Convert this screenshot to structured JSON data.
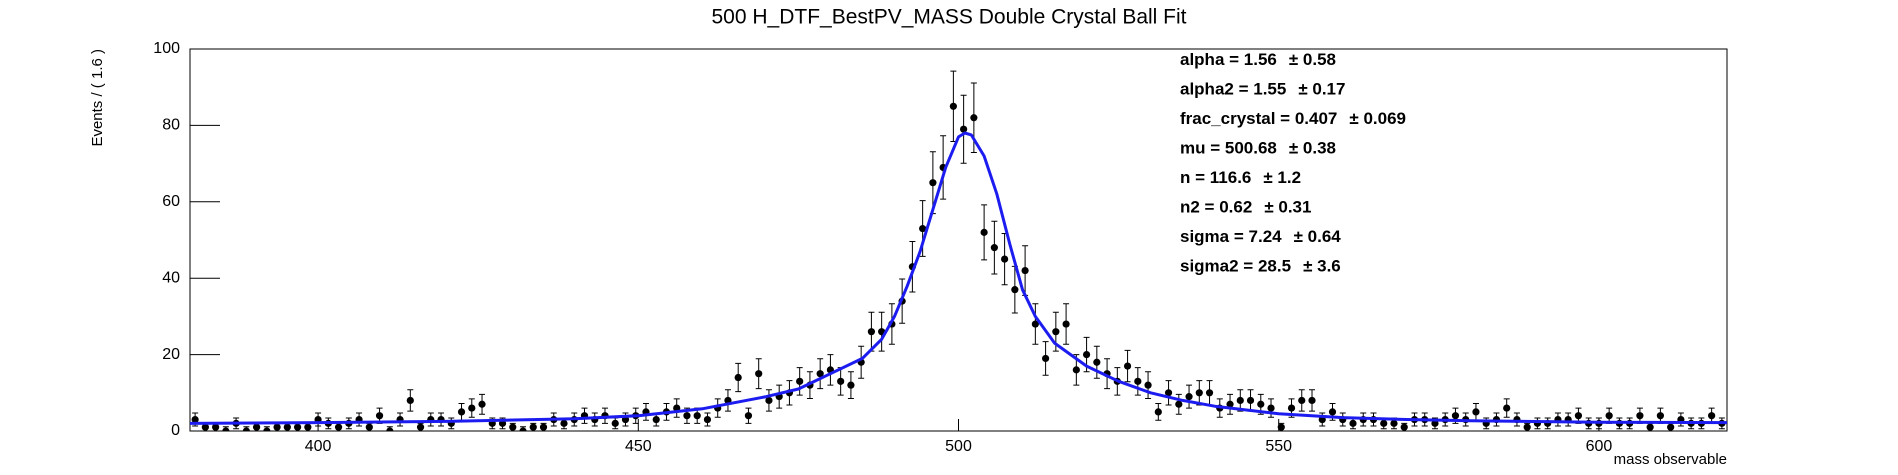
{
  "chart_data": {
    "type": "errorbar",
    "title": "500 H_DTF_BestPV_MASS Double Crystal Ball Fit",
    "y_label": "Events / ( 1.6 )",
    "x_label": "mass observable",
    "xlim": [
      380,
      620
    ],
    "ylim": [
      0,
      100
    ],
    "xticks": [
      400,
      450,
      500,
      550,
      600
    ],
    "yticks": [
      0,
      20,
      40,
      60,
      80,
      100
    ],
    "x": [
      380.8,
      382.4,
      384,
      385.6,
      387.2,
      388.8,
      390.4,
      392,
      393.6,
      395.2,
      396.8,
      398.4,
      400,
      401.6,
      403.2,
      404.8,
      406.4,
      408,
      409.6,
      411.2,
      412.8,
      414.4,
      416,
      417.6,
      419.2,
      420.8,
      422.4,
      424,
      425.6,
      427.2,
      428.8,
      430.4,
      432,
      433.6,
      435.2,
      436.8,
      438.4,
      440,
      441.6,
      443.2,
      444.8,
      446.4,
      448,
      449.6,
      451.2,
      452.8,
      454.4,
      456,
      457.6,
      459.2,
      460.8,
      462.4,
      464,
      465.6,
      467.2,
      468.8,
      470.4,
      472,
      473.6,
      475.2,
      476.8,
      478.4,
      480,
      481.6,
      483.2,
      484.8,
      486.4,
      488,
      489.6,
      491.2,
      492.8,
      494.4,
      496,
      497.6,
      499.2,
      500.8,
      502.4,
      504,
      505.6,
      507.2,
      508.8,
      510.4,
      512,
      513.6,
      515.2,
      516.8,
      518.4,
      520,
      521.6,
      523.2,
      524.8,
      526.4,
      528,
      529.6,
      531.2,
      532.8,
      534.4,
      536,
      537.6,
      539.2,
      540.8,
      542.4,
      544,
      545.6,
      547.2,
      548.8,
      550.4,
      552,
      553.6,
      555.2,
      556.8,
      558.4,
      560,
      561.6,
      563.2,
      564.8,
      566.4,
      568,
      569.6,
      571.2,
      572.8,
      574.4,
      576,
      577.6,
      579.2,
      580.8,
      582.4,
      584,
      585.6,
      587.2,
      588.8,
      590.4,
      592,
      593.6,
      595.2,
      596.8,
      598.4,
      600,
      601.6,
      603.2,
      604.8,
      606.4,
      608,
      609.6,
      611.2,
      612.8,
      614.4,
      616,
      617.6,
      619.2
    ],
    "values": [
      3,
      1,
      1,
      0,
      2,
      0,
      1,
      0,
      1,
      1,
      1,
      1,
      3,
      2,
      1,
      2,
      3,
      1,
      4,
      0,
      3,
      8,
      1,
      3,
      3,
      2,
      5,
      6,
      7,
      2,
      2,
      1,
      0,
      1,
      1,
      3,
      2,
      3,
      4,
      3,
      4,
      2,
      3,
      4,
      5,
      3,
      5,
      6,
      4,
      4,
      3,
      6,
      8,
      14,
      4,
      15,
      8,
      9,
      10,
      13,
      12,
      15,
      16,
      13,
      12,
      18,
      26,
      26,
      28,
      34,
      43,
      53,
      65,
      69,
      85,
      79,
      82,
      52,
      48,
      45,
      37,
      42,
      28,
      19,
      26,
      28,
      16,
      20,
      18,
      15,
      13,
      17,
      13,
      12,
      5,
      10,
      7,
      9,
      10,
      10,
      6,
      7,
      8,
      8,
      7,
      6,
      1,
      6,
      8,
      8,
      3,
      5,
      3,
      2,
      3,
      3,
      2,
      2,
      1,
      3,
      3,
      2,
      3,
      4,
      3,
      5,
      2,
      3,
      6,
      3,
      1,
      2,
      2,
      3,
      3,
      4,
      2,
      2,
      4,
      2,
      2,
      4,
      1,
      4,
      1,
      3,
      2,
      2,
      4,
      2
    ],
    "errors": [
      1.7,
      1,
      1,
      1.1,
      1.4,
      1.1,
      1,
      1.1,
      1,
      1,
      1,
      1,
      1.7,
      1.4,
      1,
      1.4,
      1.7,
      1,
      2,
      1.1,
      1.7,
      2.8,
      1,
      1.7,
      1.7,
      1.4,
      2.2,
      2.4,
      2.6,
      1.4,
      1.4,
      1,
      1.1,
      1,
      1,
      1.7,
      1.4,
      1.7,
      2,
      1.7,
      2,
      1.4,
      1.7,
      2,
      2.2,
      1.7,
      2.2,
      2.4,
      2,
      2,
      1.7,
      2.4,
      2.8,
      3.7,
      2,
      3.9,
      2.8,
      3,
      3.2,
      3.6,
      3.5,
      3.9,
      4,
      3.6,
      3.5,
      4.2,
      5.1,
      5.1,
      5.3,
      5.8,
      6.6,
      7.3,
      8.1,
      8.3,
      9.2,
      8.9,
      9.1,
      7.2,
      6.9,
      6.7,
      6.1,
      6.5,
      5.3,
      4.4,
      5.1,
      5.3,
      4,
      4.5,
      4.2,
      3.9,
      3.6,
      4.1,
      3.6,
      3.5,
      2.2,
      3.2,
      2.6,
      3,
      3.2,
      3.2,
      2.4,
      2.6,
      2.8,
      2.8,
      2.6,
      2.4,
      1,
      2.4,
      2.8,
      2.8,
      1.7,
      2.2,
      1.7,
      1.4,
      1.7,
      1.7,
      1.4,
      1.4,
      1,
      1.7,
      1.7,
      1.4,
      1.7,
      2,
      1.7,
      2.2,
      1.4,
      1.7,
      2.4,
      1.7,
      1,
      1.4,
      1.4,
      1.7,
      1.7,
      2,
      1.4,
      1.4,
      2,
      1.4,
      1.4,
      2,
      1,
      2,
      1,
      1.7,
      1.4,
      1.4,
      2,
      1.4
    ],
    "color": "#000000",
    "fit": {
      "color": "#1c1cf0",
      "x": [
        380,
        400,
        420,
        440,
        450,
        460,
        470,
        475,
        480,
        485,
        488,
        490,
        492,
        494,
        496,
        498,
        500,
        501,
        502,
        504,
        506,
        508,
        510,
        512,
        515,
        520,
        525,
        530,
        535,
        540,
        550,
        560,
        570,
        580,
        600,
        620
      ],
      "values": [
        2,
        2.2,
        2.5,
        3.2,
        4,
        5.8,
        9,
        11,
        15,
        19,
        24,
        30,
        38,
        47,
        58,
        69,
        77,
        78,
        77.5,
        72,
        62,
        49,
        37,
        30,
        23,
        17,
        13,
        10,
        8,
        6.5,
        4.5,
        3.5,
        3,
        2.7,
        2.3,
        2.2
      ]
    },
    "parameters": [
      {
        "name": "alpha = ",
        "value": 1.56,
        "error": "± 0.58"
      },
      {
        "name": "alpha2 = ",
        "value": 1.55,
        "error": "± 0.17"
      },
      {
        "name": "frac_crystal = ",
        "value": 0.407,
        "error": "± 0.069"
      },
      {
        "name": "mu = ",
        "value": 500.68,
        "error": "± 0.38"
      },
      {
        "name": "n = ",
        "value": 116.6,
        "error": "± 1.2"
      },
      {
        "name": "n2 = ",
        "value": 0.62,
        "error": "± 0.31"
      },
      {
        "name": "sigma = ",
        "value": 7.24,
        "error": "± 0.64"
      },
      {
        "name": "sigma2 = ",
        "value": 28.5,
        "error": "± 3.6"
      }
    ]
  }
}
